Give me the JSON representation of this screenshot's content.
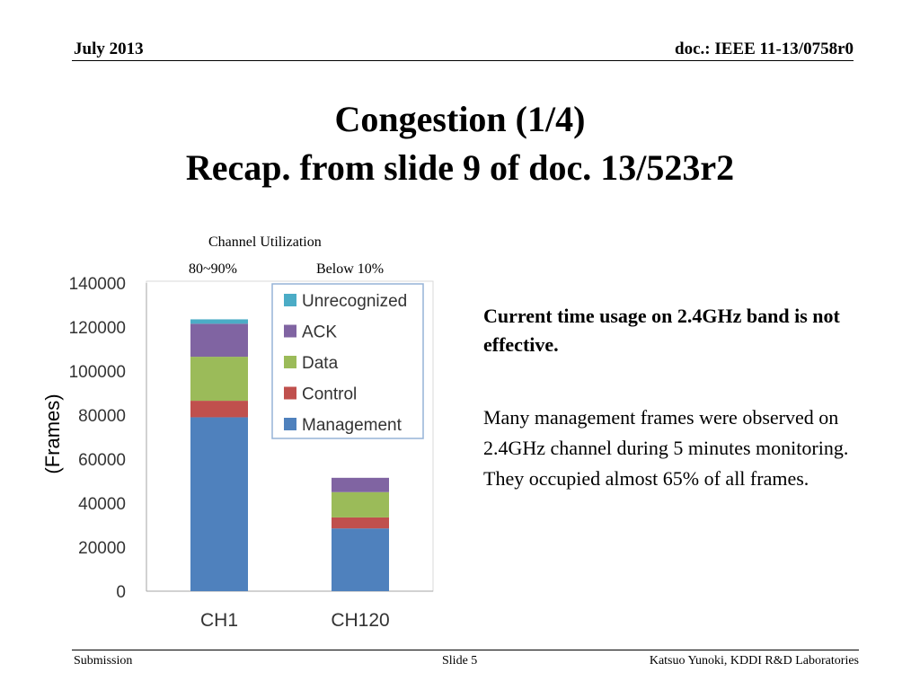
{
  "header": {
    "date": "July 2013",
    "doc": "doc.: IEEE 11-13/0758r0"
  },
  "title": {
    "line1": "Congestion (1/4)",
    "line2": "Recap. from slide 9 of doc. 13/523r2"
  },
  "chart_caption": {
    "heading": "Channel Utilization",
    "ch1": "80~90%",
    "ch120": "Below 10%"
  },
  "chart_data": {
    "type": "bar",
    "stacked": true,
    "categories": [
      "CH1",
      "CH120"
    ],
    "series": [
      {
        "name": "Management",
        "values": [
          79000,
          28500
        ],
        "color": "#4f81bd"
      },
      {
        "name": "Control",
        "values": [
          7500,
          5000
        ],
        "color": "#c0504d"
      },
      {
        "name": "Data",
        "values": [
          20000,
          11500
        ],
        "color": "#9bbb59"
      },
      {
        "name": "ACK",
        "values": [
          15000,
          6500
        ],
        "color": "#8064a2"
      },
      {
        "name": "Unrecognized",
        "values": [
          2000,
          0
        ],
        "color": "#4bacc6"
      }
    ],
    "ylabel": "(Frames)",
    "ylim": [
      0,
      140000
    ],
    "yticks": [
      0,
      20000,
      40000,
      60000,
      80000,
      100000,
      120000,
      140000
    ],
    "legend_position": "top-right"
  },
  "points": {
    "bold": "Current time usage on 2.4GHz band is not effective.",
    "body": "Many management frames were observed on 2.4GHz channel during 5 minutes monitoring.  They occupied almost 65% of all frames."
  },
  "footer": {
    "left": "Submission",
    "middle": "Slide 5",
    "right": "Katsuo Yunoki, KDDI R&D Laboratories"
  }
}
